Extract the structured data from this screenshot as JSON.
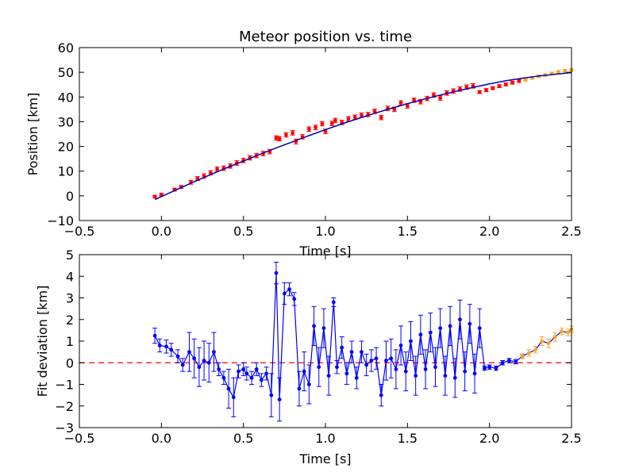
{
  "chart_data": [
    {
      "type": "scatter",
      "title": "Meteor position vs. time",
      "xlabel": "Time [s]",
      "ylabel": "Position [km]",
      "xlim": [
        -0.5,
        2.5
      ],
      "ylim": [
        -10,
        60
      ],
      "xticks": [
        "−0.5",
        "0.0",
        "0.5",
        "1.0",
        "1.5",
        "2.0",
        "2.5"
      ],
      "yticks": [
        "−10",
        "0",
        "10",
        "20",
        "30",
        "40",
        "50",
        "60"
      ],
      "xtick_values": [
        -0.5,
        0.0,
        0.5,
        1.0,
        1.5,
        2.0,
        2.5
      ],
      "ytick_values": [
        -10,
        0,
        10,
        20,
        30,
        40,
        50,
        60
      ],
      "grid": false,
      "colors": {
        "measured": "#ff0000",
        "extrapolated": "#f5a623",
        "fit": "#0000b0"
      },
      "series": [
        {
          "role": "measured",
          "style": "markers-with-errorbars",
          "color": "#ff0000",
          "x": [
            -0.04,
            0.0,
            0.08,
            0.12,
            0.18,
            0.22,
            0.26,
            0.3,
            0.34,
            0.38,
            0.42,
            0.46,
            0.5,
            0.54,
            0.58,
            0.62,
            0.66,
            0.7,
            0.72,
            0.76,
            0.8,
            0.82,
            0.86,
            0.9,
            0.94,
            0.98,
            1.0,
            1.04,
            1.06,
            1.1,
            1.14,
            1.18,
            1.22,
            1.26,
            1.3,
            1.34,
            1.38,
            1.42,
            1.46,
            1.5,
            1.54,
            1.58,
            1.62,
            1.66,
            1.7,
            1.74,
            1.78,
            1.82,
            1.86,
            1.9,
            1.94,
            1.98,
            2.02,
            2.06,
            2.1,
            2.14,
            2.18
          ],
          "y": [
            -0.3,
            0.5,
            2.5,
            3.6,
            5.5,
            7.0,
            8.0,
            9.3,
            10.8,
            11.2,
            12.1,
            13.3,
            14.3,
            15.4,
            16.3,
            17.1,
            17.9,
            23.4,
            23.1,
            24.7,
            25.5,
            22.0,
            23.9,
            27.0,
            27.7,
            29.2,
            26.1,
            29.3,
            30.5,
            29.7,
            31.2,
            31.8,
            32.7,
            32.9,
            34.2,
            31.7,
            35.4,
            35.0,
            37.6,
            36.4,
            38.7,
            38.1,
            39.4,
            40.8,
            39.6,
            41.6,
            42.4,
            43.2,
            44.0,
            44.5,
            42.0,
            42.8,
            43.6,
            44.4,
            45.1,
            45.8,
            46.5
          ],
          "yerr": [
            0.5,
            0.5,
            0.6,
            0.6,
            0.8,
            0.8,
            0.9,
            0.9,
            0.9,
            0.9,
            0.9,
            0.9,
            0.9,
            0.9,
            0.9,
            0.9,
            0.9,
            0.9,
            0.9,
            0.9,
            0.9,
            1.0,
            0.9,
            0.9,
            0.9,
            0.9,
            0.9,
            0.9,
            0.9,
            0.9,
            0.9,
            0.9,
            0.9,
            0.9,
            0.9,
            0.9,
            0.9,
            0.9,
            0.9,
            0.9,
            0.9,
            0.9,
            0.9,
            0.9,
            0.9,
            0.9,
            0.9,
            0.9,
            0.9,
            0.9,
            0.6,
            0.6,
            0.6,
            0.6,
            0.6,
            0.6,
            0.6
          ]
        },
        {
          "role": "extrapolated",
          "style": "markers-with-errorbars",
          "color": "#f5a623",
          "x": [
            2.22,
            2.26,
            2.3,
            2.34,
            2.38,
            2.42,
            2.46,
            2.5
          ],
          "y": [
            46.9,
            47.7,
            48.4,
            48.9,
            49.5,
            50.2,
            50.6,
            51.0
          ],
          "yerr": [
            0.4,
            0.5,
            0.5,
            0.5,
            0.5,
            0.5,
            0.5,
            0.5
          ]
        },
        {
          "role": "fit",
          "style": "line",
          "color": "#0000b0",
          "x": [
            -0.04,
            0.0,
            0.1,
            0.2,
            0.3,
            0.4,
            0.5,
            0.6,
            0.7,
            0.8,
            0.9,
            1.0,
            1.1,
            1.2,
            1.3,
            1.4,
            1.5,
            1.6,
            1.7,
            1.8,
            1.9,
            2.0,
            2.1,
            2.2,
            2.3,
            2.4,
            2.5
          ],
          "y": [
            -1.5,
            -0.3,
            2.7,
            5.7,
            8.6,
            11.4,
            14.1,
            16.8,
            19.4,
            21.9,
            24.4,
            26.8,
            29.1,
            31.3,
            33.4,
            35.4,
            37.3,
            39.1,
            40.8,
            42.4,
            43.9,
            45.3,
            46.6,
            47.6,
            48.5,
            49.2,
            49.9
          ]
        }
      ]
    },
    {
      "type": "line",
      "title": "",
      "xlabel": "Time [s]",
      "ylabel": "Fit deviation [km]",
      "xlim": [
        -0.5,
        2.5
      ],
      "ylim": [
        -3,
        5
      ],
      "xticks": [
        "−0.5",
        "0.0",
        "0.5",
        "1.0",
        "1.5",
        "2.0",
        "2.5"
      ],
      "yticks": [
        "−3",
        "−2",
        "−1",
        "0",
        "1",
        "2",
        "3",
        "4",
        "5"
      ],
      "xtick_values": [
        -0.5,
        0.0,
        0.5,
        1.0,
        1.5,
        2.0,
        2.5
      ],
      "ytick_values": [
        -3,
        -2,
        -1,
        0,
        1,
        2,
        3,
        4,
        5
      ],
      "grid": false,
      "colors": {
        "deviation": "#0000ff",
        "extrapolated": "#f5a623",
        "zero_line": "#ff0000"
      },
      "zero_line": {
        "y": 0,
        "style": "dashed",
        "color": "#ff0000"
      },
      "series": [
        {
          "role": "deviation",
          "style": "line-markers-errorbars",
          "color": "#0000ff",
          "x": [
            -0.04,
            -0.01,
            0.03,
            0.06,
            0.1,
            0.13,
            0.17,
            0.2,
            0.23,
            0.26,
            0.29,
            0.32,
            0.35,
            0.38,
            0.41,
            0.44,
            0.47,
            0.5,
            0.52,
            0.55,
            0.58,
            0.61,
            0.64,
            0.67,
            0.7,
            0.72,
            0.75,
            0.78,
            0.81,
            0.84,
            0.87,
            0.9,
            0.93,
            0.96,
            0.99,
            1.02,
            1.05,
            1.07,
            1.1,
            1.13,
            1.16,
            1.19,
            1.22,
            1.25,
            1.28,
            1.31,
            1.34,
            1.37,
            1.4,
            1.43,
            1.46,
            1.49,
            1.52,
            1.55,
            1.58,
            1.61,
            1.64,
            1.67,
            1.7,
            1.73,
            1.76,
            1.79,
            1.82,
            1.85,
            1.88,
            1.91,
            1.94,
            1.97,
            2.0,
            2.04,
            2.08,
            2.12,
            2.16,
            2.2
          ],
          "y": [
            1.25,
            0.8,
            0.75,
            0.6,
            0.3,
            -0.1,
            0.5,
            0.2,
            -0.2,
            0.1,
            0.0,
            0.5,
            -0.3,
            -0.7,
            -1.2,
            -1.6,
            -0.4,
            -0.3,
            -0.5,
            -0.7,
            -0.3,
            -0.8,
            -0.5,
            -1.5,
            4.15,
            -1.7,
            3.2,
            3.4,
            2.95,
            -1.2,
            -0.4,
            -1.0,
            1.7,
            -0.2,
            1.6,
            -0.6,
            2.8,
            -0.2,
            0.7,
            -0.5,
            0.5,
            -0.7,
            0.5,
            -0.1,
            0.1,
            0.2,
            -1.5,
            0.1,
            0.2,
            -0.3,
            0.8,
            -0.4,
            1.0,
            -0.6,
            1.3,
            -0.3,
            1.4,
            -0.2,
            1.6,
            -0.6,
            1.7,
            -0.7,
            2.0,
            -0.4,
            1.8,
            -0.5,
            1.6,
            -0.25,
            -0.2,
            -0.25,
            0.0,
            0.1,
            0.05,
            0.3
          ],
          "yerr": [
            0.35,
            0.3,
            0.3,
            0.3,
            0.3,
            0.3,
            0.9,
            0.9,
            0.9,
            0.9,
            0.9,
            0.9,
            0.3,
            0.3,
            0.9,
            0.9,
            0.3,
            0.3,
            0.3,
            0.3,
            0.3,
            0.3,
            0.3,
            1.0,
            0.5,
            1.0,
            0.5,
            0.3,
            0.3,
            0.8,
            0.9,
            0.9,
            0.9,
            0.9,
            0.9,
            0.9,
            0.2,
            0.3,
            0.5,
            0.5,
            0.5,
            0.5,
            0.5,
            0.5,
            0.5,
            0.5,
            0.5,
            0.9,
            0.9,
            0.9,
            0.9,
            0.9,
            0.9,
            0.9,
            0.9,
            0.9,
            0.9,
            0.9,
            0.9,
            0.9,
            0.9,
            0.9,
            0.9,
            0.9,
            0.9,
            0.9,
            0.9,
            0.1,
            0.1,
            0.1,
            0.1,
            0.1,
            0.1,
            0.1
          ]
        },
        {
          "role": "extrapolated",
          "style": "line-markers-errorbars",
          "color": "#f5a623",
          "line_color": "#0000ff",
          "x": [
            2.2,
            2.24,
            2.28,
            2.32,
            2.36,
            2.4,
            2.44,
            2.48,
            2.5
          ],
          "y": [
            0.3,
            0.45,
            0.6,
            1.0,
            0.9,
            1.2,
            1.45,
            1.4,
            1.55
          ],
          "yerr": [
            0.1,
            0.15,
            0.15,
            0.2,
            0.2,
            0.2,
            0.15,
            0.15,
            0.15
          ]
        }
      ]
    }
  ]
}
